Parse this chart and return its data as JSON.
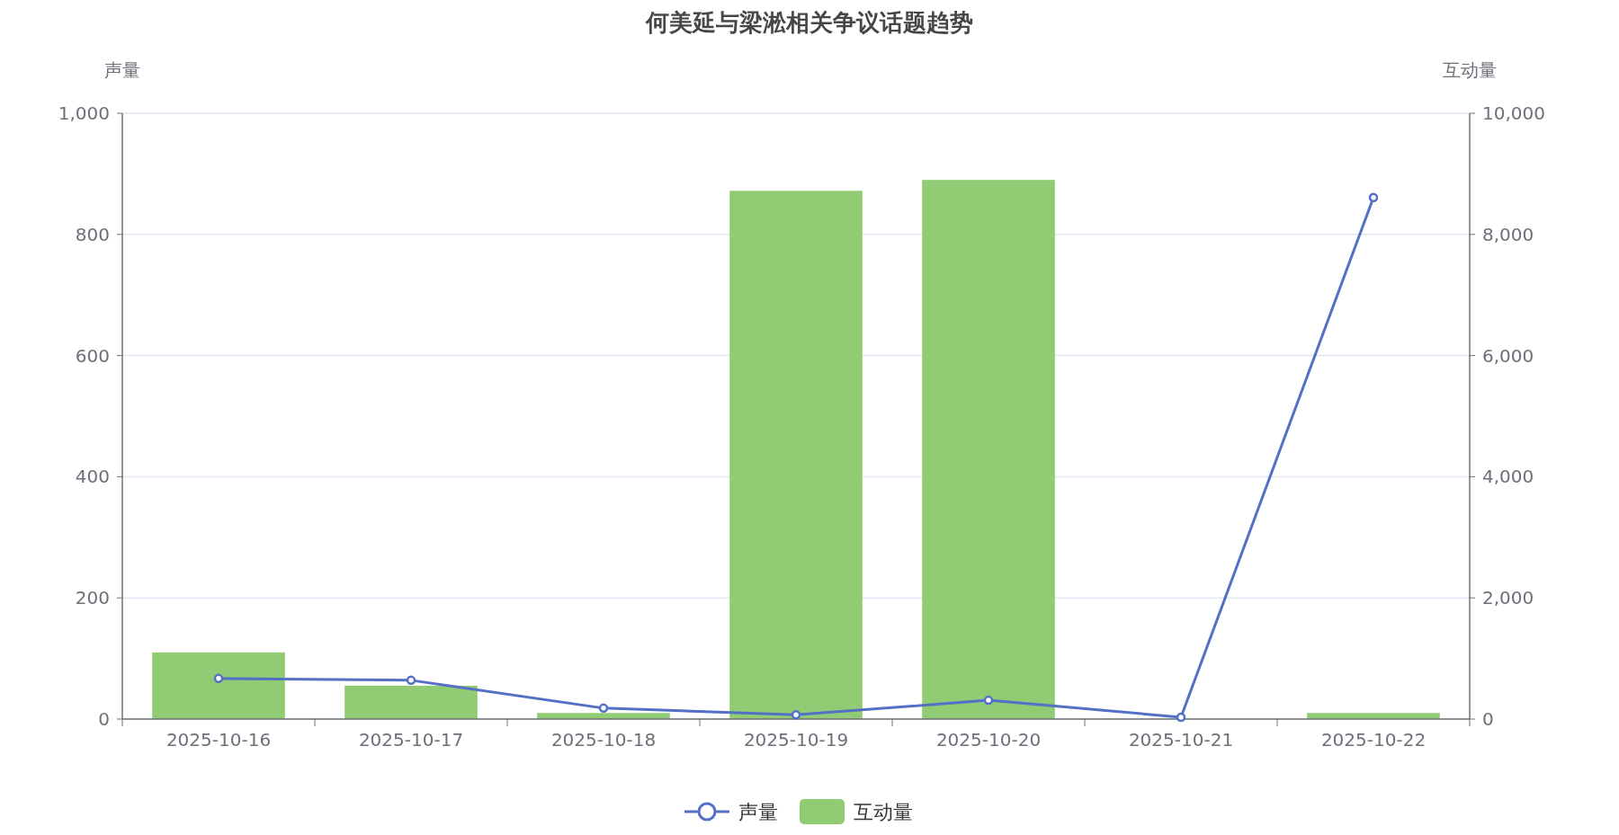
{
  "chart_data": {
    "type": "bar",
    "title": "何美延与梁淞相关争议话题趋势",
    "ylabel": "声量",
    "y2label": "互动量",
    "categories": [
      "2025-10-16",
      "2025-10-17",
      "2025-10-18",
      "2025-10-19",
      "2025-10-20",
      "2025-10-21",
      "2025-10-22"
    ],
    "series": [
      {
        "name": "声量",
        "type": "line",
        "color": "#5470c6",
        "marker": "circle",
        "values": [
          67,
          64,
          18,
          7,
          31,
          3,
          861
        ]
      },
      {
        "name": "互动量",
        "axis": "y2",
        "color": "#91cc75",
        "values": [
          1100,
          550,
          100,
          8720,
          8900,
          0,
          100
        ]
      }
    ],
    "ylim": [
      0,
      1000
    ],
    "yticks": [
      0,
      200,
      400,
      600,
      800,
      {
        "value": 1000,
        "label": "1,000"
      }
    ],
    "y2lim": [
      0,
      10000
    ],
    "y2ticks": [
      0,
      {
        "value": 2000,
        "label": "2,000"
      },
      {
        "value": 4000,
        "label": "4,000"
      },
      {
        "value": 6000,
        "label": "6,000"
      },
      {
        "value": 8000,
        "label": "8,000"
      },
      {
        "value": 10000,
        "label": "10,000"
      }
    ],
    "grid": "y",
    "legend": "bottom"
  }
}
